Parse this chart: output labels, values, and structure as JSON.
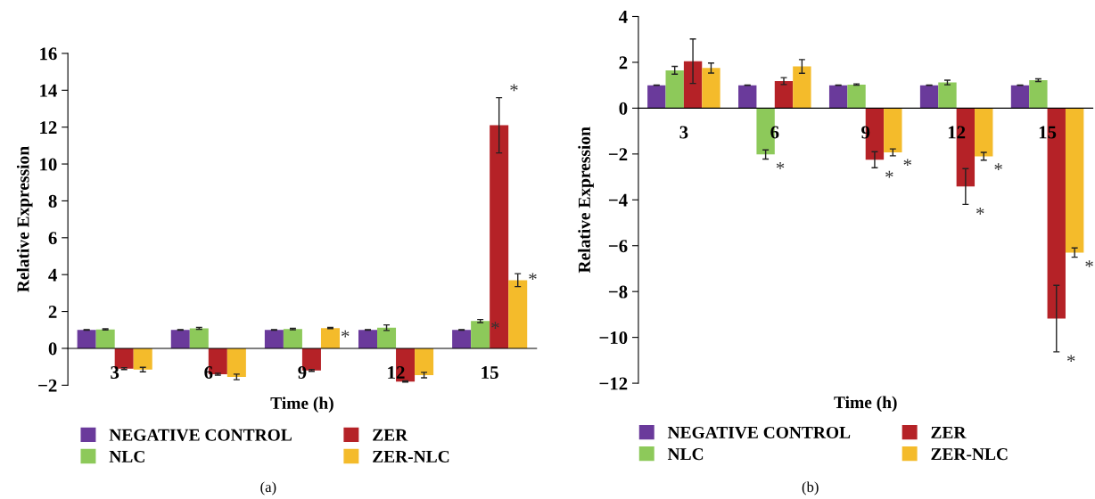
{
  "chart_data": [
    {
      "type": "bar",
      "categories": [
        "3",
        "6",
        "9",
        "12",
        "15"
      ],
      "xlabel": "Time (h)",
      "ylabel": "Relative Expression",
      "ylim": [
        -2,
        16
      ],
      "yticks": [
        {
          "value": -2,
          "label": "−2"
        },
        0,
        2,
        4,
        6,
        8,
        10,
        12,
        14,
        16
      ],
      "grid": false,
      "legend": "bottom",
      "series": [
        {
          "name": "NEGATIVE CONTROL",
          "color": "#6a3a9b",
          "values": [
            1,
            1,
            1,
            1,
            1
          ],
          "errors": [
            0.01,
            0.01,
            0.01,
            0.01,
            0.01
          ]
        },
        {
          "name": "NLC",
          "color": "#8dc95a",
          "values": [
            1.03,
            1.08,
            1.05,
            1.12,
            1.48
          ],
          "errors": [
            0.03,
            0.05,
            0.04,
            0.15,
            0.08
          ]
        },
        {
          "name": "ZER",
          "color": "#b52227",
          "values": [
            -1.1,
            -1.4,
            -1.2,
            -1.8,
            12.1
          ],
          "errors": [
            0.05,
            0.05,
            0.05,
            0.03,
            1.5
          ]
        },
        {
          "name": "ZER-NLC",
          "color": "#f4bb2b",
          "values": [
            -1.15,
            -1.55,
            1.1,
            -1.45,
            3.7
          ],
          "errors": [
            0.12,
            0.15,
            0.03,
            0.15,
            0.35
          ]
        }
      ],
      "annotations": [
        {
          "text": "*",
          "x": "9",
          "y": 1.1
        },
        {
          "text": "*",
          "x": "15",
          "y": 12.1
        },
        {
          "text": "*",
          "x": "15",
          "y": 1.48
        },
        {
          "text": "*",
          "x": "15",
          "y": 3.7
        },
        "(a)"
      ]
    },
    {
      "type": "bar",
      "categories": [
        "3",
        "6",
        "9",
        "12",
        "15"
      ],
      "xlabel": "Time (h)",
      "ylabel": "Relative Expression",
      "ylim": [
        -12,
        4
      ],
      "yticks": [
        {
          "value": -12,
          "label": "−12"
        },
        {
          "value": -10,
          "label": "−10"
        },
        {
          "value": -8,
          "label": "−8"
        },
        {
          "value": -6,
          "label": "−6"
        },
        {
          "value": -4,
          "label": "−4"
        },
        {
          "value": -2,
          "label": "−2"
        },
        0,
        2,
        4
      ],
      "grid": false,
      "legend": "bottom",
      "series": [
        {
          "name": "NEGATIVE CONTROL",
          "color": "#6a3a9b",
          "values": [
            1,
            1,
            1,
            1,
            1
          ],
          "errors": [
            0.01,
            0.01,
            0.01,
            0.01,
            0.01
          ]
        },
        {
          "name": "NLC",
          "color": "#8dc95a",
          "values": [
            1.65,
            -2.02,
            1.03,
            1.12,
            1.22
          ],
          "errors": [
            0.17,
            0.2,
            0.03,
            0.1,
            0.06
          ]
        },
        {
          "name": "ZER",
          "color": "#b52227",
          "values": [
            2.05,
            1.18,
            -2.25,
            -3.42,
            -9.18
          ],
          "errors": [
            0.97,
            0.15,
            0.35,
            0.78,
            1.45
          ]
        },
        {
          "name": "ZER-NLC",
          "color": "#f4bb2b",
          "values": [
            1.75,
            1.82,
            -1.93,
            -2.1,
            -6.3
          ],
          "errors": [
            0.22,
            0.3,
            0.15,
            0.17,
            0.2
          ]
        }
      ],
      "annotations": [
        {
          "text": "*",
          "x": "6",
          "y": -2.02
        },
        {
          "text": "*",
          "x": "9",
          "y": -2.25
        },
        {
          "text": "*",
          "x": "9",
          "y": -1.93
        },
        {
          "text": "*",
          "x": "12",
          "y": -3.42
        },
        {
          "text": "*",
          "x": "12",
          "y": -2.1
        },
        {
          "text": "*",
          "x": "15",
          "y": -9.18
        },
        {
          "text": "*",
          "x": "15",
          "y": -6.3
        },
        "(b)"
      ]
    }
  ]
}
